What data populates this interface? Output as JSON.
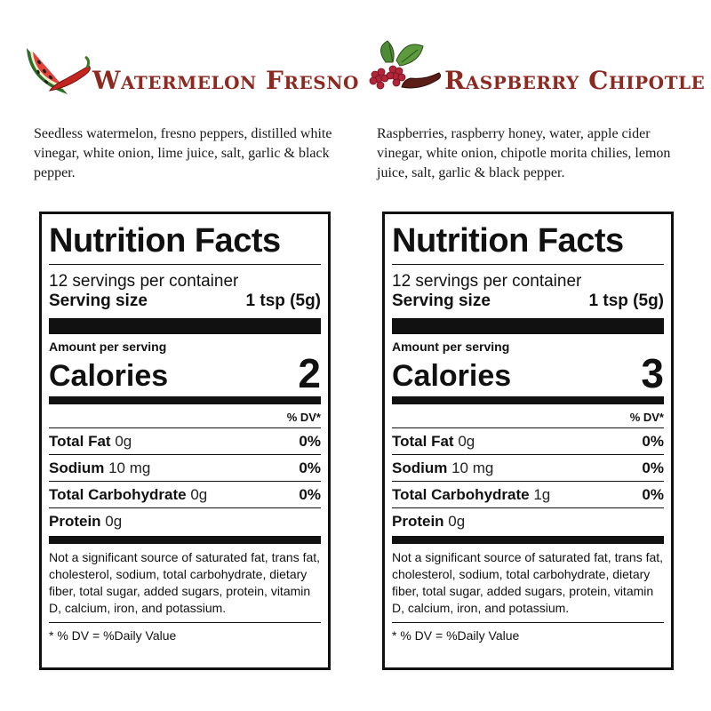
{
  "products": [
    {
      "title": "Watermelon Fresno",
      "ingredients": "Seedless watermelon, fresno peppers, distilled white vinegar, white onion, lime juice, salt, garlic & black pepper.",
      "nutrition": {
        "heading": "Nutrition Facts",
        "servings_per_container": "12 servings per container",
        "serving_size_label": "Serving size",
        "serving_size_value": "1 tsp (5g)",
        "amount_per_serving": "Amount per serving",
        "calories_label": "Calories",
        "calories_value": "2",
        "dv_header": "% DV*",
        "total_fat_label": "Total Fat",
        "total_fat_amount": "0g",
        "total_fat_dv": "0%",
        "sodium_label": "Sodium",
        "sodium_amount": "10 mg",
        "sodium_dv": "0%",
        "carb_label": "Total Carbohydrate",
        "carb_amount": "0g",
        "carb_dv": "0%",
        "protein_label": "Protein",
        "protein_amount": "0g",
        "note": "Not a significant source of saturated fat, trans fat, cholesterol, sodium, total carbohydrate, dietary fiber, total sugar, added sugars, protein, vitamin D, calcium, iron, and potassium.",
        "footnote": "* % DV = %Daily Value"
      }
    },
    {
      "title": "Raspberry Chipotle",
      "ingredients": "Raspberries, raspberry honey, water, apple cider vinegar, white onion, chipotle morita chilies, lemon juice, salt, garlic & black pepper.",
      "nutrition": {
        "heading": "Nutrition Facts",
        "servings_per_container": "12 servings per container",
        "serving_size_label": "Serving size",
        "serving_size_value": "1 tsp (5g)",
        "amount_per_serving": "Amount per serving",
        "calories_label": "Calories",
        "calories_value": "3",
        "dv_header": "% DV*",
        "total_fat_label": "Total Fat",
        "total_fat_amount": "0g",
        "total_fat_dv": "0%",
        "sodium_label": "Sodium",
        "sodium_amount": "10 mg",
        "sodium_dv": "0%",
        "carb_label": "Total Carbohydrate",
        "carb_amount": "1g",
        "carb_dv": "0%",
        "protein_label": "Protein",
        "protein_amount": "0g",
        "note": "Not a significant source of saturated fat, trans fat, cholesterol, sodium, total carbohydrate, dietary fiber, total sugar, added sugars, protein, vitamin D, calcium, iron, and potassium.",
        "footnote": "* % DV = %Daily Value"
      }
    }
  ],
  "icons": {
    "left_logo": "watermelon-pepper-icon",
    "right_logo": "raspberry-chipotle-icon"
  },
  "colors": {
    "title": "#8c2a22",
    "label_ink": "#111111"
  }
}
